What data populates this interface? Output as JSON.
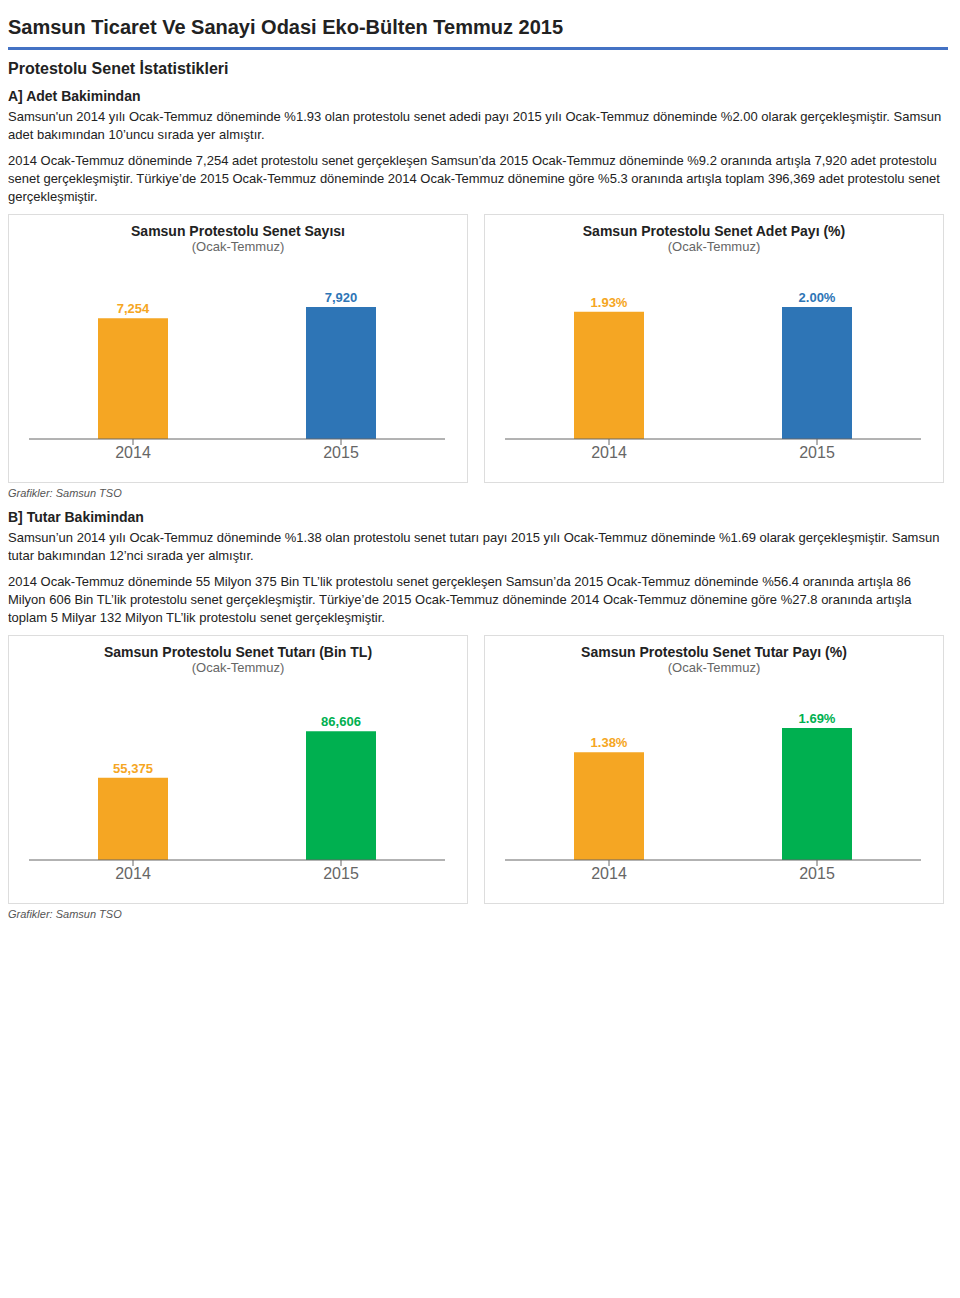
{
  "title": "Samsun Ticaret Ve Sanayi Odasi Eko-Bülten Temmuz 2015",
  "annotations": [
    "Protestolu Senet İstatistikleri",
    "A] Adet Bakimindan",
    "Samsun'un 2014 yılı Ocak-Temmuz döneminde %1.93 olan protestolu senet adedi payı 2015 yılı Ocak-Temmuz döneminde %2.00 olarak gerçekleşmiştir. Samsun adet bakımından 10’uncu sırada yer almıştır.",
    "2014 Ocak-Temmuz döneminde 7,254 adet protestolu senet gerçekleşen Samsun’da 2015 Ocak-Temmuz döneminde %9.2 oranında artışla 7,920 adet protestolu senet gerçekleşmiştir. Türkiye’de 2015 Ocak-Temmuz döneminde 2014 Ocak-Temmuz dönemine göre %5.3 oranında artışla toplam 396,369 adet protestolu senet gerçekleşmiştir.",
    "Grafikler: Samsun TSO",
    "B] Tutar Bakimindan",
    "Samsun’un 2014 yılı Ocak-Temmuz döneminde %1.38 olan protestolu senet tutarı payı 2015 yılı Ocak-Temmuz döneminde %1.69 olarak gerçekleşmiştir. Samsun tutar bakımından 12’nci sırada yer almıştır.",
    "2014 Ocak-Temmuz döneminde 55 Milyon 375 Bin TL’lik protestolu senet gerçekleşen Samsun’da 2015 Ocak-Temmuz döneminde %56.4 oranında artışla 86 Milyon 606 Bin TL’lik protestolu senet gerçekleşmiştir. Türkiye’de 2015 Ocak-Temmuz döneminde 2014 Ocak-Temmuz dönemine göre %27.8 oranında artışla toplam 5 Milyar 132 Milyon TL’lik protestolu senet gerçekleşmiştir.",
    "Grafikler: Samsun TSO"
  ],
  "chart_data": [
    {
      "type": "bar",
      "title": "Samsun Protestolu Senet Sayısı",
      "subtitle": "(Ocak-Temmuz)",
      "categories": [
        "2014",
        "2015"
      ],
      "values": [
        7254,
        7920
      ],
      "value_labels": [
        "7,254",
        "7,920"
      ],
      "colors": [
        "#F5A623",
        "#2E75B6"
      ],
      "ylim": [
        0,
        9662.4
      ],
      "data_labels": true,
      "tick_labels": "x",
      "grid": false
    },
    {
      "type": "bar",
      "title": "Samsun Protestolu Senet Adet Payı (%)",
      "subtitle": "(Ocak-Temmuz)",
      "categories": [
        "2014",
        "2015"
      ],
      "values": [
        1.93,
        2.0
      ],
      "value_labels": [
        "1.93%",
        "2.00%"
      ],
      "colors": [
        "#F5A623",
        "#2E75B6"
      ],
      "ylim": [
        0,
        2.44
      ],
      "data_labels": true,
      "tick_labels": "x",
      "grid": false
    },
    {
      "type": "bar",
      "title": "Samsun Protestolu Senet Tutarı (Bin TL)",
      "subtitle": "(Ocak-Temmuz)",
      "categories": [
        "2014",
        "2015"
      ],
      "values": [
        55375,
        86606
      ],
      "value_labels": [
        "55,375",
        "86,606"
      ],
      "colors": [
        "#F5A623",
        "#00B050"
      ],
      "ylim": [
        0,
        108257.5
      ],
      "data_labels": true,
      "tick_labels": "x",
      "grid": false
    },
    {
      "type": "bar",
      "title": "Samsun Protestolu Senet Tutar Payı (%)",
      "subtitle": "(Ocak-Temmuz)",
      "categories": [
        "2014",
        "2015"
      ],
      "values": [
        1.38,
        1.69
      ],
      "value_labels": [
        "1.38%",
        "1.69%"
      ],
      "colors": [
        "#F5A623",
        "#00B050"
      ],
      "ylim": [
        0,
        2.0618
      ],
      "data_labels": true,
      "tick_labels": "x",
      "grid": false
    }
  ]
}
